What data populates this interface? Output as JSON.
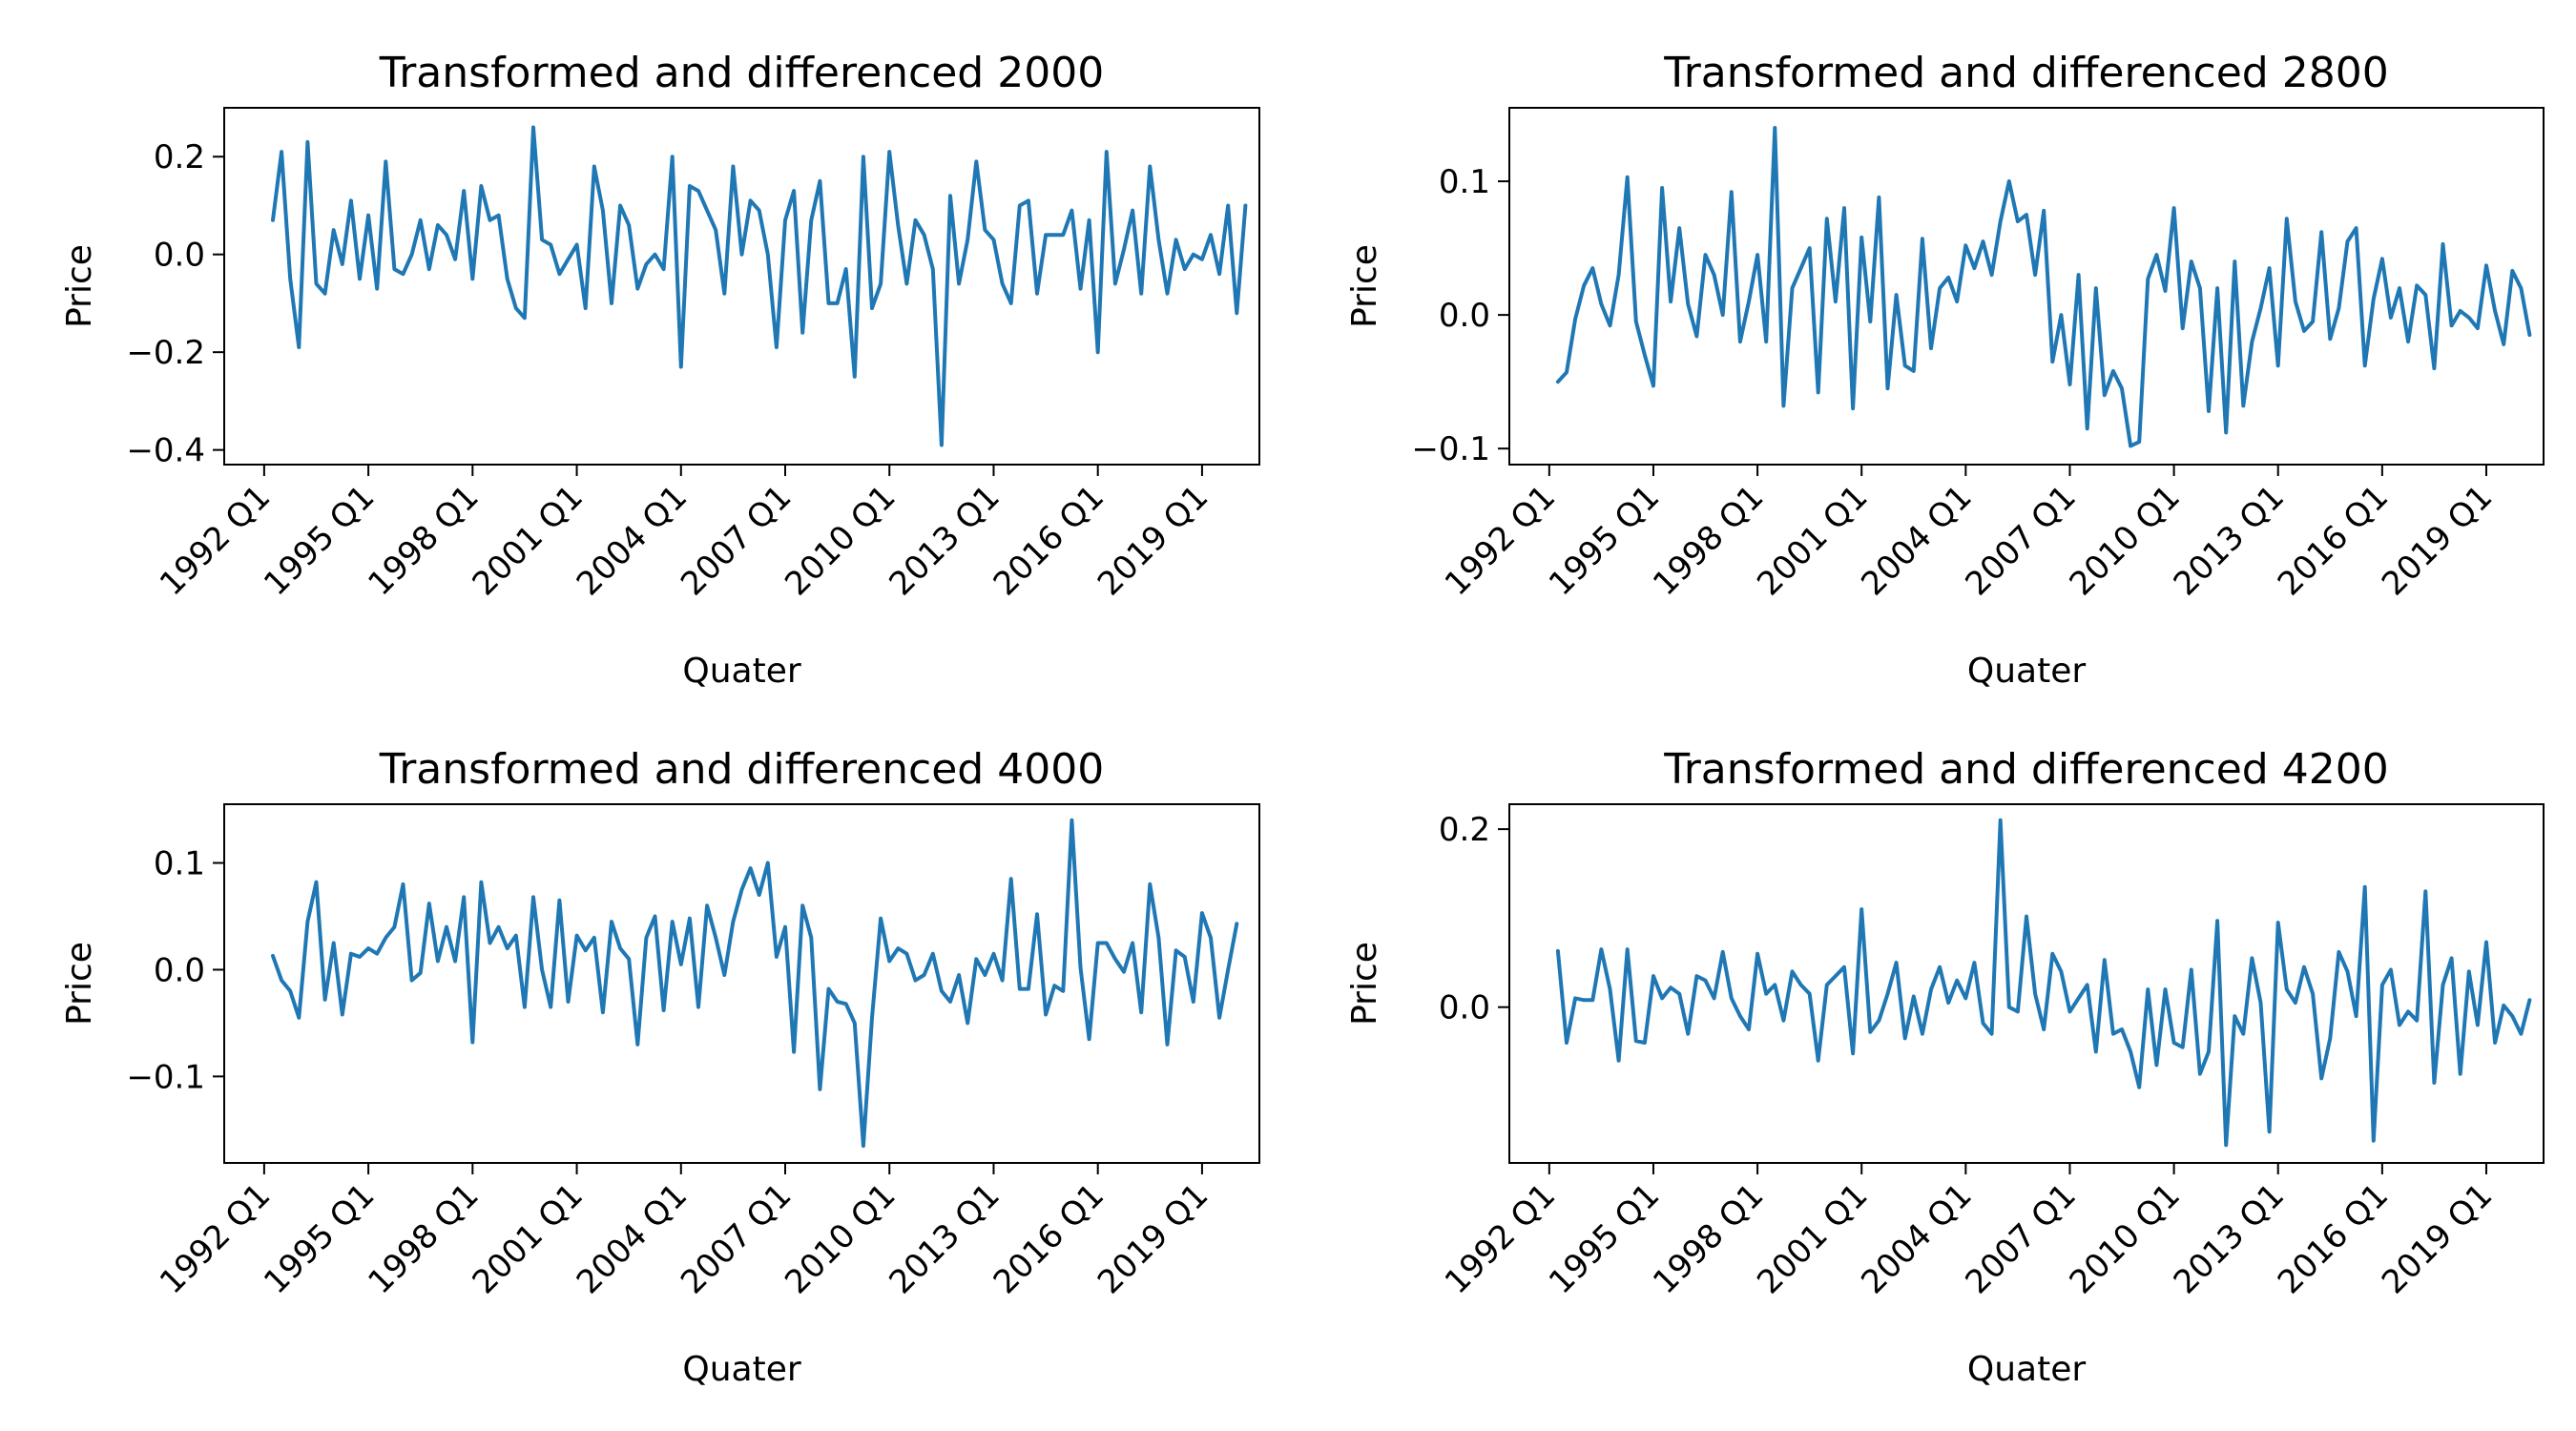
{
  "chart_data": [
    {
      "type": "line",
      "title": "Transformed and differenced 2000",
      "xlabel": "Quater",
      "ylabel": "Price",
      "ylim": [
        -0.43,
        0.3
      ],
      "yticks": [
        -0.4,
        -0.2,
        0.0,
        0.2
      ],
      "ytick_labels": [
        "−0.4",
        "−0.2",
        "0.0",
        "0.2"
      ],
      "x_start": "1992 Q2",
      "xticks": [
        "1992 Q1",
        "1995 Q1",
        "1998 Q1",
        "2001 Q1",
        "2004 Q1",
        "2007 Q1",
        "2010 Q1",
        "2013 Q1",
        "2016 Q1",
        "2019 Q1"
      ],
      "grid": false,
      "color": "#1f77b4",
      "values": [
        0.07,
        0.21,
        -0.05,
        -0.19,
        0.23,
        -0.06,
        -0.08,
        0.05,
        -0.02,
        0.11,
        -0.05,
        0.08,
        -0.07,
        0.19,
        -0.03,
        -0.04,
        0.0,
        0.07,
        -0.03,
        0.06,
        0.04,
        -0.01,
        0.13,
        -0.05,
        0.14,
        0.07,
        0.08,
        -0.05,
        -0.11,
        -0.13,
        0.26,
        0.03,
        0.02,
        -0.04,
        -0.01,
        0.02,
        -0.11,
        0.18,
        0.09,
        -0.1,
        0.1,
        0.06,
        -0.07,
        -0.02,
        0.0,
        -0.03,
        0.2,
        -0.23,
        0.14,
        0.13,
        0.09,
        0.05,
        -0.08,
        0.18,
        0.0,
        0.11,
        0.09,
        0.0,
        -0.19,
        0.07,
        0.13,
        -0.16,
        0.07,
        0.15,
        -0.1,
        -0.1,
        -0.03,
        -0.25,
        0.2,
        -0.11,
        -0.06,
        0.21,
        0.06,
        -0.06,
        0.07,
        0.04,
        -0.03,
        -0.39,
        0.12,
        -0.06,
        0.03,
        0.19,
        0.05,
        0.03,
        -0.06,
        -0.1,
        0.1,
        0.11,
        -0.08,
        0.04,
        0.04,
        0.04,
        0.09,
        -0.07,
        0.07,
        -0.2,
        0.21,
        -0.06,
        0.01,
        0.09,
        -0.08,
        0.18,
        0.03,
        -0.08,
        0.03,
        -0.03,
        0.0,
        -0.01,
        0.04,
        -0.04,
        0.1,
        -0.12,
        0.1
      ]
    },
    {
      "type": "line",
      "title": "Transformed and differenced 2800",
      "xlabel": "Quater",
      "ylabel": "Price",
      "ylim": [
        -0.112,
        0.155
      ],
      "yticks": [
        -0.1,
        0.0,
        0.1
      ],
      "ytick_labels": [
        "−0.1",
        "0.0",
        "0.1"
      ],
      "x_start": "1992 Q2",
      "xticks": [
        "1992 Q1",
        "1995 Q1",
        "1998 Q1",
        "2001 Q1",
        "2004 Q1",
        "2007 Q1",
        "2010 Q1",
        "2013 Q1",
        "2016 Q1",
        "2019 Q1"
      ],
      "grid": false,
      "color": "#1f77b4",
      "values": [
        -0.05,
        -0.043,
        -0.003,
        0.022,
        0.035,
        0.008,
        -0.008,
        0.03,
        0.103,
        -0.005,
        -0.03,
        -0.053,
        0.095,
        0.01,
        0.065,
        0.008,
        -0.016,
        0.045,
        0.03,
        0.0,
        0.092,
        -0.02,
        0.01,
        0.045,
        -0.02,
        0.14,
        -0.068,
        0.02,
        0.035,
        0.05,
        -0.058,
        0.072,
        0.01,
        0.08,
        -0.07,
        0.058,
        -0.005,
        0.088,
        -0.055,
        0.015,
        -0.038,
        -0.042,
        0.057,
        -0.025,
        0.02,
        0.028,
        0.01,
        0.052,
        0.035,
        0.055,
        0.03,
        0.07,
        0.1,
        0.07,
        0.075,
        0.03,
        0.078,
        -0.035,
        0.0,
        -0.052,
        0.03,
        -0.085,
        0.02,
        -0.06,
        -0.042,
        -0.055,
        -0.098,
        -0.095,
        0.027,
        0.045,
        0.018,
        0.08,
        -0.01,
        0.04,
        0.02,
        -0.072,
        0.02,
        -0.088,
        0.04,
        -0.068,
        -0.02,
        0.005,
        0.035,
        -0.038,
        0.072,
        0.01,
        -0.012,
        -0.005,
        0.062,
        -0.018,
        0.005,
        0.055,
        0.065,
        -0.038,
        0.012,
        0.042,
        -0.002,
        0.02,
        -0.02,
        0.022,
        0.015,
        -0.04,
        0.053,
        -0.008,
        0.003,
        -0.002,
        -0.01,
        0.037,
        0.003,
        -0.022,
        0.033,
        0.02,
        -0.015
      ]
    },
    {
      "type": "line",
      "title": "Transformed and differenced 4000",
      "xlabel": "Quater",
      "ylabel": "Price",
      "ylim": [
        -0.181,
        0.155
      ],
      "yticks": [
        -0.1,
        0.0,
        0.1
      ],
      "ytick_labels": [
        "−0.1",
        "0.0",
        "0.1"
      ],
      "x_start": "1992 Q2",
      "xticks": [
        "1992 Q1",
        "1995 Q1",
        "1998 Q1",
        "2001 Q1",
        "2004 Q1",
        "2007 Q1",
        "2010 Q1",
        "2013 Q1",
        "2016 Q1",
        "2019 Q1"
      ],
      "grid": false,
      "color": "#1f77b4",
      "values": [
        0.013,
        -0.01,
        -0.02,
        -0.045,
        0.045,
        0.082,
        -0.028,
        0.025,
        -0.042,
        0.015,
        0.012,
        0.02,
        0.015,
        0.03,
        0.04,
        0.08,
        -0.01,
        -0.003,
        0.062,
        0.008,
        0.04,
        0.008,
        0.068,
        -0.068,
        0.082,
        0.025,
        0.04,
        0.02,
        0.032,
        -0.035,
        0.068,
        0.0,
        -0.035,
        0.065,
        -0.03,
        0.032,
        0.018,
        0.03,
        -0.04,
        0.045,
        0.02,
        0.01,
        -0.07,
        0.03,
        0.05,
        -0.038,
        0.045,
        0.005,
        0.048,
        -0.035,
        0.06,
        0.03,
        -0.005,
        0.045,
        0.075,
        0.095,
        0.07,
        0.1,
        0.012,
        0.04,
        -0.077,
        0.06,
        0.03,
        -0.112,
        -0.018,
        -0.03,
        -0.032,
        -0.05,
        -0.165,
        -0.045,
        0.048,
        0.008,
        0.02,
        0.015,
        -0.01,
        -0.005,
        0.015,
        -0.02,
        -0.03,
        -0.005,
        -0.05,
        0.01,
        -0.005,
        0.015,
        -0.01,
        0.085,
        -0.018,
        -0.018,
        0.052,
        -0.042,
        -0.015,
        -0.02,
        0.14,
        0.002,
        -0.065,
        0.025,
        0.025,
        0.01,
        -0.002,
        0.025,
        -0.04,
        0.08,
        0.03,
        -0.07,
        0.018,
        0.012,
        -0.03,
        0.053,
        0.03,
        -0.045,
        0.0,
        0.043
      ]
    },
    {
      "type": "line",
      "title": "Transformed and differenced 4200",
      "xlabel": "Quater",
      "ylabel": "Price",
      "ylim": [
        -0.175,
        0.228
      ],
      "yticks": [
        0.0,
        0.2
      ],
      "ytick_labels": [
        "0.0",
        "0.2"
      ],
      "x_start": "1992 Q2",
      "xticks": [
        "1992 Q1",
        "1995 Q1",
        "1998 Q1",
        "2001 Q1",
        "2004 Q1",
        "2007 Q1",
        "2010 Q1",
        "2013 Q1",
        "2016 Q1",
        "2019 Q1"
      ],
      "grid": false,
      "color": "#1f77b4",
      "values": [
        0.063,
        -0.04,
        0.01,
        0.008,
        0.008,
        0.065,
        0.02,
        -0.06,
        0.065,
        -0.038,
        -0.04,
        0.035,
        0.01,
        0.022,
        0.015,
        -0.03,
        0.035,
        0.03,
        0.01,
        0.062,
        0.01,
        -0.01,
        -0.025,
        0.06,
        0.015,
        0.025,
        -0.015,
        0.04,
        0.025,
        0.015,
        -0.06,
        0.025,
        0.035,
        0.045,
        -0.052,
        0.11,
        -0.028,
        -0.015,
        0.015,
        0.05,
        -0.035,
        0.012,
        -0.03,
        0.02,
        0.045,
        0.005,
        0.03,
        0.01,
        0.05,
        -0.018,
        -0.03,
        0.21,
        0.0,
        -0.005,
        0.102,
        0.015,
        -0.025,
        0.06,
        0.04,
        -0.005,
        0.01,
        0.025,
        -0.05,
        0.053,
        -0.03,
        -0.025,
        -0.05,
        -0.09,
        0.02,
        -0.065,
        0.02,
        -0.04,
        -0.045,
        0.042,
        -0.075,
        -0.05,
        0.097,
        -0.155,
        -0.01,
        -0.03,
        0.055,
        0.005,
        -0.14,
        0.095,
        0.02,
        0.005,
        0.045,
        0.015,
        -0.08,
        -0.035,
        0.062,
        0.04,
        -0.01,
        0.135,
        -0.15,
        0.025,
        0.042,
        -0.02,
        -0.005,
        -0.015,
        0.13,
        -0.085,
        0.025,
        0.055,
        -0.075,
        0.04,
        -0.02,
        0.073,
        -0.04,
        0.002,
        -0.01,
        -0.03,
        0.008
      ]
    }
  ]
}
